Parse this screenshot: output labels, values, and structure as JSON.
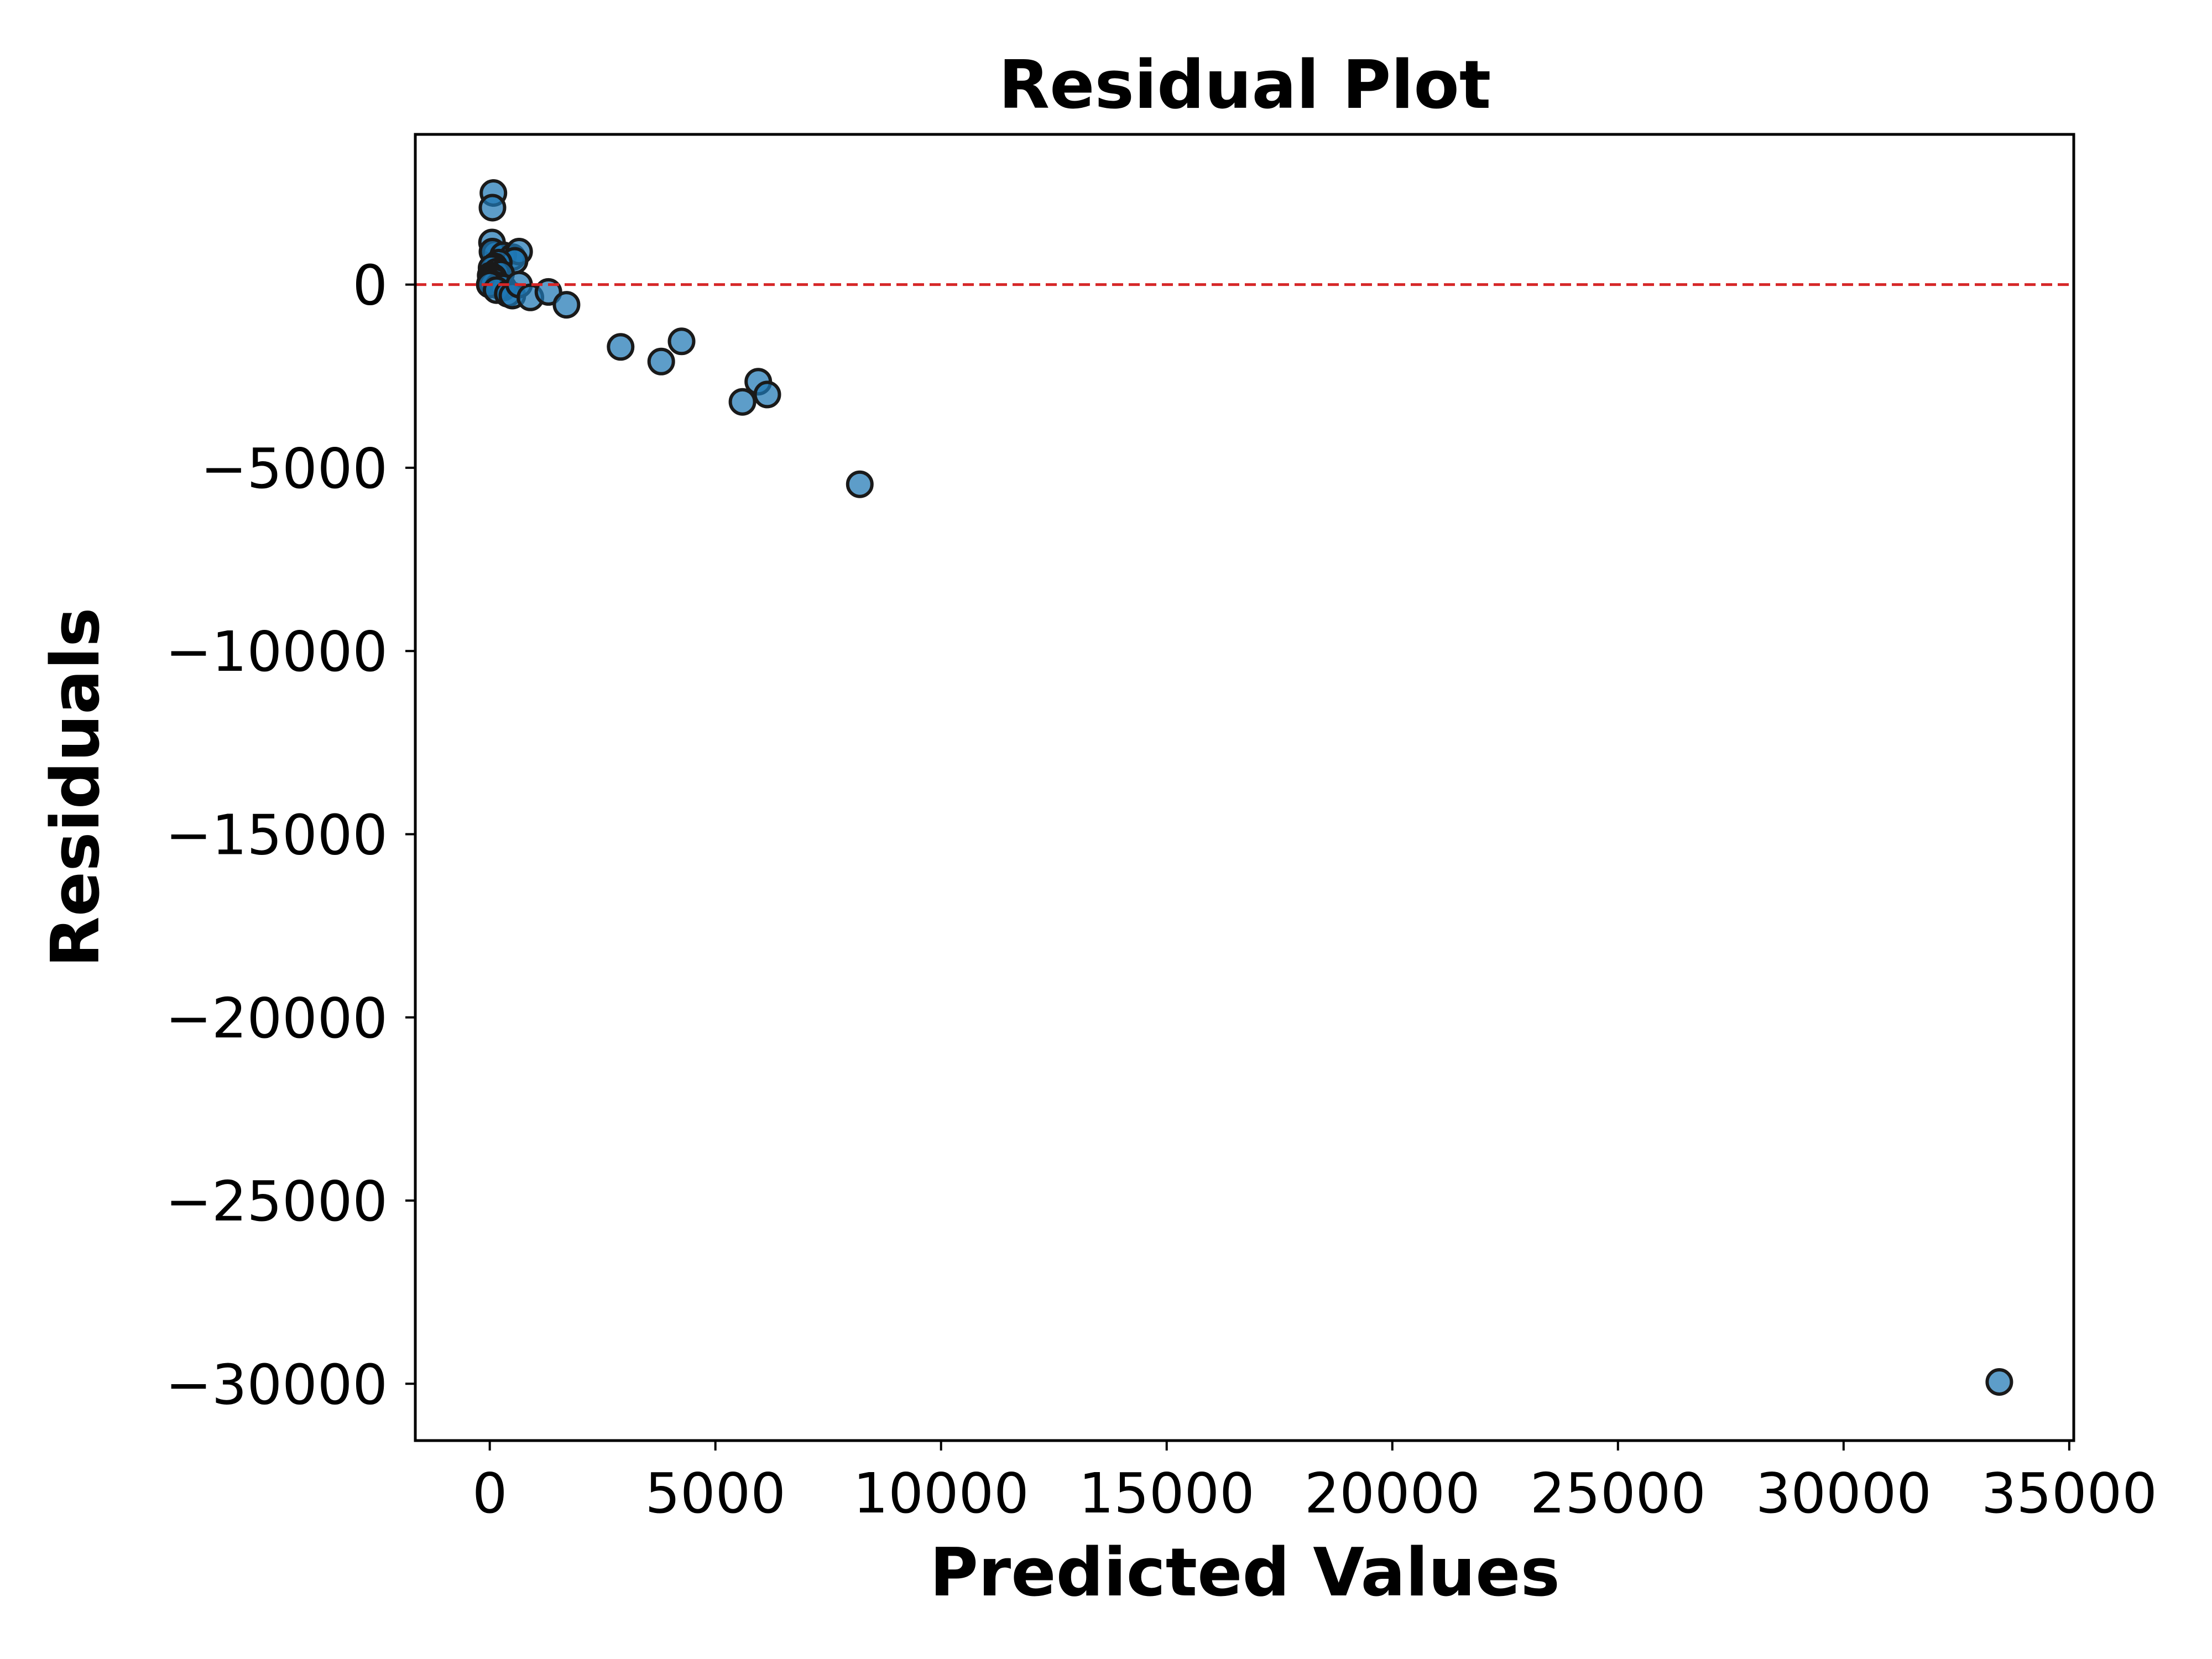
{
  "chart_data": {
    "type": "scatter",
    "title": "Residual Plot",
    "xlabel": "Predicted Values",
    "ylabel": "Residuals",
    "xlim": [
      -1650,
      35100
    ],
    "ylim": [
      -31550,
      4100
    ],
    "x_ticks": [
      0,
      5000,
      10000,
      15000,
      20000,
      25000,
      30000,
      35000
    ],
    "y_ticks": [
      0,
      -5000,
      -10000,
      -15000,
      -20000,
      -25000,
      -30000
    ],
    "x_tick_labels": [
      "0",
      "5000",
      "10000",
      "15000",
      "20000",
      "25000",
      "30000",
      "35000"
    ],
    "y_tick_labels": [
      "0",
      "−5000",
      "−10000",
      "−15000",
      "−20000",
      "−25000",
      "−30000"
    ],
    "reference_line": {
      "y": 0,
      "style": "dashed",
      "color": "#d62728"
    },
    "grid": false,
    "marker_color": "#1f77b4",
    "series": [
      {
        "points": [
          {
            "x": 80,
            "y": 2500
          },
          {
            "x": 60,
            "y": 2100
          },
          {
            "x": 50,
            "y": 1150
          },
          {
            "x": 120,
            "y": 850
          },
          {
            "x": 60,
            "y": 900
          },
          {
            "x": 300,
            "y": 800
          },
          {
            "x": 500,
            "y": 750
          },
          {
            "x": 650,
            "y": 900
          },
          {
            "x": 550,
            "y": 650
          },
          {
            "x": 200,
            "y": 600
          },
          {
            "x": 100,
            "y": 500
          },
          {
            "x": 40,
            "y": 450
          },
          {
            "x": 150,
            "y": 350
          },
          {
            "x": 250,
            "y": 300
          },
          {
            "x": 20,
            "y": 250
          },
          {
            "x": 80,
            "y": 200
          },
          {
            "x": 30,
            "y": 150
          },
          {
            "x": 120,
            "y": 100
          },
          {
            "x": 10,
            "y": 50
          },
          {
            "x": 60,
            "y": 20
          },
          {
            "x": 200,
            "y": -30
          },
          {
            "x": 300,
            "y": -80
          },
          {
            "x": 0,
            "y": 0
          },
          {
            "x": 150,
            "y": -150
          },
          {
            "x": 400,
            "y": -250
          },
          {
            "x": 500,
            "y": -300
          },
          {
            "x": 650,
            "y": 0
          },
          {
            "x": 900,
            "y": -350
          },
          {
            "x": 1300,
            "y": -200
          },
          {
            "x": 1700,
            "y": -550
          },
          {
            "x": 2900,
            "y": -1700
          },
          {
            "x": 3800,
            "y": -2100
          },
          {
            "x": 4250,
            "y": -1550
          },
          {
            "x": 5950,
            "y": -2650
          },
          {
            "x": 5600,
            "y": -3200
          },
          {
            "x": 6150,
            "y": -3000
          },
          {
            "x": 8200,
            "y": -5450
          },
          {
            "x": 33450,
            "y": -29950
          }
        ]
      }
    ]
  }
}
